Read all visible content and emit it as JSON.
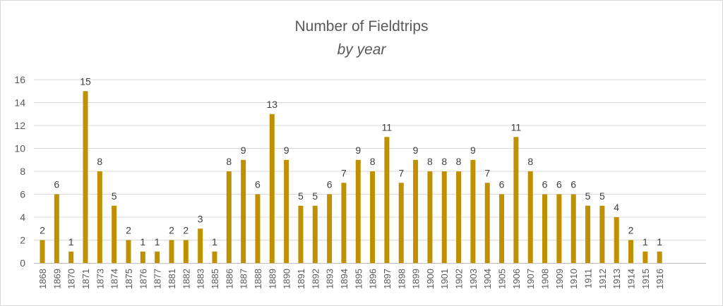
{
  "chart_data": {
    "type": "bar",
    "title": "Number of Fieldtrips",
    "subtitle": "by year",
    "xlabel": "",
    "ylabel": "",
    "ylim": [
      0,
      16
    ],
    "yticks": [
      0,
      2,
      4,
      6,
      8,
      10,
      12,
      14,
      16
    ],
    "grid": true,
    "legend": "none",
    "bar_color": "#bf9000",
    "categories": [
      "1868",
      "1869",
      "1870",
      "1871",
      "1873",
      "1874",
      "1875",
      "1876",
      "1877",
      "1881",
      "1882",
      "1883",
      "1885",
      "1886",
      "1887",
      "1888",
      "1889",
      "1890",
      "1891",
      "1892",
      "1893",
      "1894",
      "1895",
      "1896",
      "1897",
      "1898",
      "1899",
      "1900",
      "1901",
      "1902",
      "1903",
      "1904",
      "1905",
      "1906",
      "1907",
      "1908",
      "1909",
      "1910",
      "1911",
      "1912",
      "1913",
      "1914",
      "1915",
      "1916"
    ],
    "values": [
      2,
      6,
      1,
      15,
      8,
      5,
      2,
      1,
      1,
      2,
      2,
      3,
      1,
      8,
      9,
      6,
      13,
      9,
      5,
      5,
      6,
      7,
      9,
      8,
      11,
      7,
      9,
      8,
      8,
      8,
      9,
      7,
      6,
      11,
      8,
      6,
      6,
      6,
      5,
      5,
      4,
      2,
      1,
      1
    ]
  }
}
